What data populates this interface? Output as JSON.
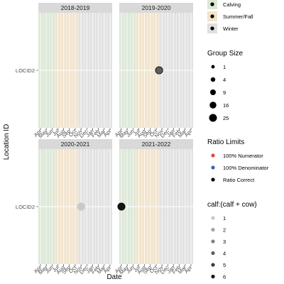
{
  "chart_data": {
    "type": "scatter",
    "xlabel": "Date",
    "ylabel": "Location ID",
    "y_categories": [
      "LOCID2"
    ],
    "x_tick_labels": [
      "Apr",
      "May",
      "Jun",
      "Jul",
      "Aug",
      "Sep",
      "Oct",
      "Nov",
      "Dec",
      "Jan",
      "Feb",
      "Mar",
      "Apr"
    ],
    "x_range": [
      0,
      12
    ],
    "season_bands": [
      {
        "season": "Calving",
        "start": 0,
        "end": 2.5
      },
      {
        "season": "Summer/Fall",
        "start": 2.5,
        "end": 6.5
      },
      {
        "season": "Winter",
        "start": 6.5,
        "end": 12
      }
    ],
    "panels": [
      {
        "title": "2018-2019",
        "points": []
      },
      {
        "title": "2019-2020",
        "points": [
          {
            "x": 6.5,
            "y": "LOCID2",
            "group_size": 12,
            "ratio": 4,
            "ratio_limit": "Ratio Correct"
          }
        ]
      },
      {
        "title": "2020-2021",
        "points": [
          {
            "x": 7.0,
            "y": "LOCID2",
            "group_size": 16,
            "ratio": 1,
            "ratio_limit": "Ratio Correct"
          }
        ]
      },
      {
        "title": "2021-2022",
        "points": [
          {
            "x": 0.0,
            "y": "LOCID2",
            "group_size": 12,
            "ratio": 6,
            "ratio_limit": "Ratio Correct"
          }
        ]
      }
    ],
    "legends": {
      "season": {
        "title": "",
        "items": [
          {
            "label": "Calving",
            "color": "#dbe8d4"
          },
          {
            "label": "Summer/Fall",
            "color": "#f3e3c8"
          },
          {
            "label": "Winter",
            "color": "#e0e0e0"
          }
        ]
      },
      "group_size": {
        "title": "Group Size",
        "items": [
          1,
          4,
          9,
          16,
          25
        ]
      },
      "ratio_limits": {
        "title": "Ratio Limits",
        "items": [
          {
            "label": "100% Numerator",
            "color": "#e8453c"
          },
          {
            "label": "100% Denominator",
            "color": "#3a63a8"
          },
          {
            "label": "Ratio Correct",
            "color": "#000000"
          }
        ]
      },
      "ratio": {
        "title": "calf:(calf + cow)",
        "items": [
          {
            "label": "1",
            "color": "#c8c8c8"
          },
          {
            "label": "2",
            "color": "#a3a3a3"
          },
          {
            "label": "3",
            "color": "#808080"
          },
          {
            "label": "4",
            "color": "#5e5e5e"
          },
          {
            "label": "5",
            "color": "#3b3b3b"
          },
          {
            "label": "6",
            "color": "#141414"
          }
        ]
      }
    }
  }
}
